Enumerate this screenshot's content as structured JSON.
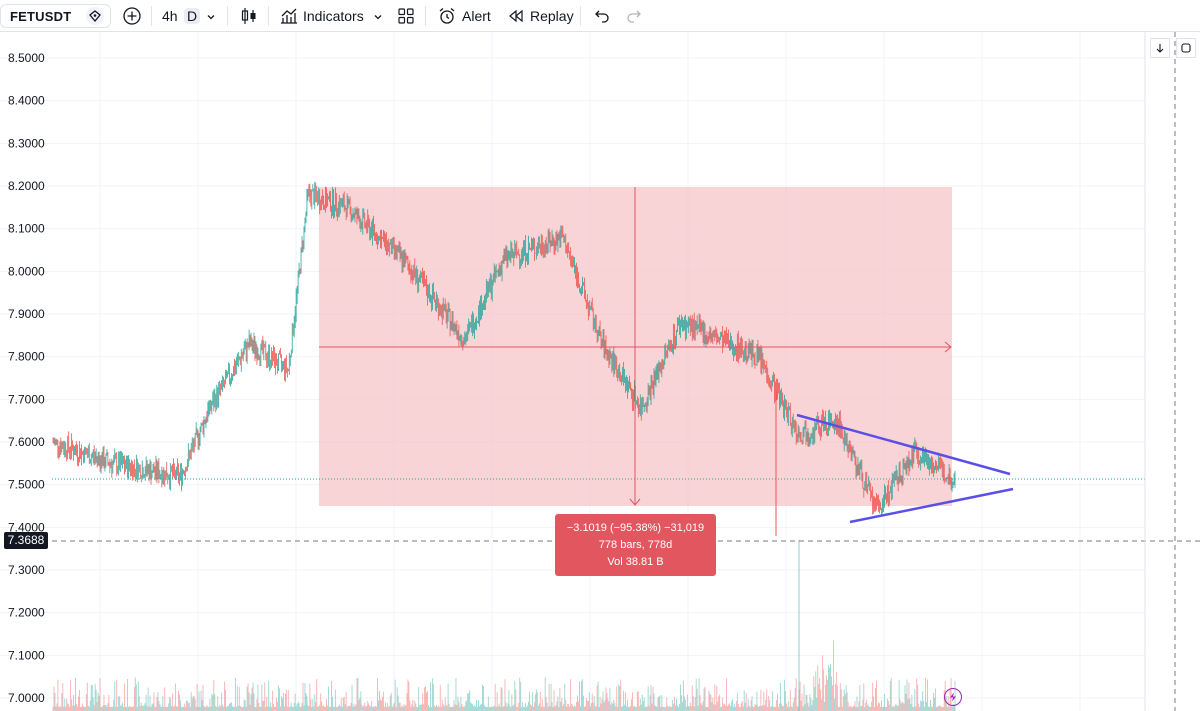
{
  "toolbar": {
    "symbol": "FETUSDT",
    "interval_primary": "4h",
    "interval_secondary": "D",
    "indicators_label": "Indicators",
    "alert_label": "Alert",
    "replay_label": "Replay"
  },
  "icons": {
    "symbol_badge": "diamond-icon",
    "add_symbol": "plus-circle-icon",
    "interval_dropdown": "chevron-down-icon",
    "chart_type": "candles-icon",
    "indicators": "indicators-icon",
    "indicators_dropdown": "chevron-down-icon",
    "layouts": "grid-icon",
    "alert": "alarm-icon",
    "replay": "rewind-icon",
    "undo": "undo-icon",
    "redo": "redo-icon",
    "scroll_to_end": "arrow-down-icon",
    "auto_scale": "auto-scale-icon",
    "bolt": "lightning-icon"
  },
  "price_axis": {
    "labels": [
      "8.5000",
      "8.4000",
      "8.3000",
      "8.2000",
      "8.1000",
      "8.0000",
      "7.9000",
      "7.8000",
      "7.7000",
      "7.6000",
      "7.5000",
      "7.4000",
      "7.3000",
      "7.2000",
      "7.1000",
      "7.0000"
    ],
    "current_price": "7.3688",
    "range": [
      7.0,
      8.5
    ]
  },
  "measure_tool": {
    "line1": "−3.1019 (−95.38%) −31,019",
    "line2": "778 bars, 778d",
    "line3": "Vol 38.81 B"
  },
  "colors": {
    "up": "#26a69a",
    "down": "#ef5350",
    "measure_fill": "#f5c6c8",
    "measure_label": "#e25660",
    "trendline": "#5b4fe6",
    "grid": "#f0f3fa"
  },
  "chart_data": {
    "type": "candlestick",
    "ylim": [
      7.0,
      8.5
    ],
    "key_points": [
      {
        "bar": 0,
        "price": 7.6
      },
      {
        "bar": 60,
        "price": 7.55
      },
      {
        "bar": 130,
        "price": 7.52
      },
      {
        "bar": 160,
        "price": 7.68
      },
      {
        "bar": 200,
        "price": 7.83
      },
      {
        "bar": 240,
        "price": 7.77
      },
      {
        "bar": 260,
        "price": 8.18
      },
      {
        "bar": 300,
        "price": 8.15
      },
      {
        "bar": 360,
        "price": 8.02
      },
      {
        "bar": 420,
        "price": 7.84
      },
      {
        "bar": 460,
        "price": 8.03
      },
      {
        "bar": 520,
        "price": 8.08
      },
      {
        "bar": 560,
        "price": 7.83
      },
      {
        "bar": 600,
        "price": 7.68
      },
      {
        "bar": 640,
        "price": 7.88
      },
      {
        "bar": 720,
        "price": 7.8
      },
      {
        "bar": 760,
        "price": 7.62
      },
      {
        "bar": 800,
        "price": 7.65
      },
      {
        "bar": 840,
        "price": 7.44
      },
      {
        "bar": 880,
        "price": 7.58
      },
      {
        "bar": 920,
        "price": 7.51
      }
    ]
  }
}
